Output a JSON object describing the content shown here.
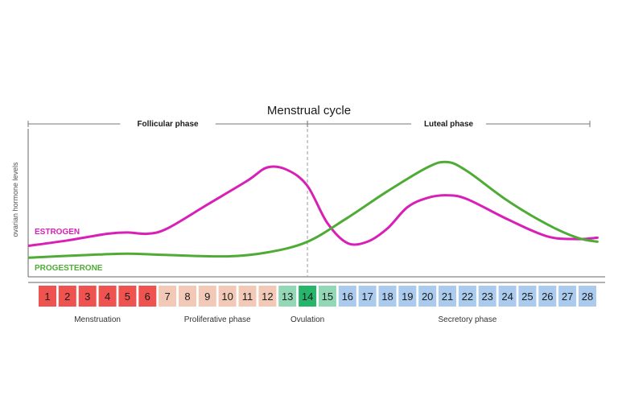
{
  "chart_data": {
    "type": "line",
    "title": "Menstrual cycle",
    "ylabel": "ovarian hormone levels",
    "xlabel": "",
    "x_range": [
      1,
      28
    ],
    "ylim": [
      0,
      100
    ],
    "grid": false,
    "top_phases": [
      {
        "label": "Follicular phase",
        "from": 1,
        "to": 14
      },
      {
        "label": "Luteal phase",
        "from": 14,
        "to": 28
      }
    ],
    "ovulation_marker_day": 14,
    "days": [
      1,
      2,
      3,
      4,
      5,
      6,
      7,
      8,
      9,
      10,
      11,
      12,
      13,
      14,
      15,
      16,
      17,
      18,
      19,
      20,
      21,
      22,
      23,
      24,
      25,
      26,
      27,
      28
    ],
    "day_colors": [
      "#ee5350",
      "#ee5350",
      "#ee5350",
      "#ee5350",
      "#ee5350",
      "#ee5350",
      "#f2c9b6",
      "#f2c9b6",
      "#f2c9b6",
      "#f2c9b6",
      "#f2c9b6",
      "#f2c9b6",
      "#92d8b6",
      "#27b56b",
      "#92d8b6",
      "#aacbee",
      "#aacbee",
      "#aacbee",
      "#aacbee",
      "#aacbee",
      "#aacbee",
      "#aacbee",
      "#aacbee",
      "#aacbee",
      "#aacbee",
      "#aacbee",
      "#aacbee",
      "#aacbee"
    ],
    "bottom_phases": [
      {
        "label": "Menstruation",
        "from": 1,
        "to": 6
      },
      {
        "label": "Proliferative phase",
        "from": 7,
        "to": 12
      },
      {
        "label": "Ovulation",
        "from": 13,
        "to": 15
      },
      {
        "label": "Secretory phase",
        "from": 16,
        "to": 28
      }
    ],
    "series": [
      {
        "name": "ESTROGEN",
        "color": "#d81fb7",
        "points": [
          [
            0,
            21
          ],
          [
            2,
            25
          ],
          [
            4,
            30
          ],
          [
            5,
            31
          ],
          [
            6,
            30
          ],
          [
            7,
            34
          ],
          [
            9,
            52
          ],
          [
            11,
            70
          ],
          [
            12,
            80
          ],
          [
            13,
            78
          ],
          [
            14,
            66
          ],
          [
            15,
            38
          ],
          [
            16,
            23
          ],
          [
            17,
            24
          ],
          [
            18,
            34
          ],
          [
            19,
            50
          ],
          [
            20,
            57
          ],
          [
            21,
            59
          ],
          [
            22,
            56
          ],
          [
            24,
            41
          ],
          [
            26,
            28
          ],
          [
            27.5,
            26
          ],
          [
            28.5,
            27
          ]
        ]
      },
      {
        "name": "PROGESTERONE",
        "color": "#4eab35",
        "points": [
          [
            0,
            12
          ],
          [
            3,
            14
          ],
          [
            5,
            15
          ],
          [
            7,
            14
          ],
          [
            10,
            13
          ],
          [
            12,
            16
          ],
          [
            14,
            24
          ],
          [
            16,
            42
          ],
          [
            18,
            62
          ],
          [
            20,
            80
          ],
          [
            21,
            84
          ],
          [
            22,
            77
          ],
          [
            24,
            55
          ],
          [
            26,
            37
          ],
          [
            27.5,
            27
          ],
          [
            28.5,
            24
          ]
        ]
      }
    ]
  }
}
